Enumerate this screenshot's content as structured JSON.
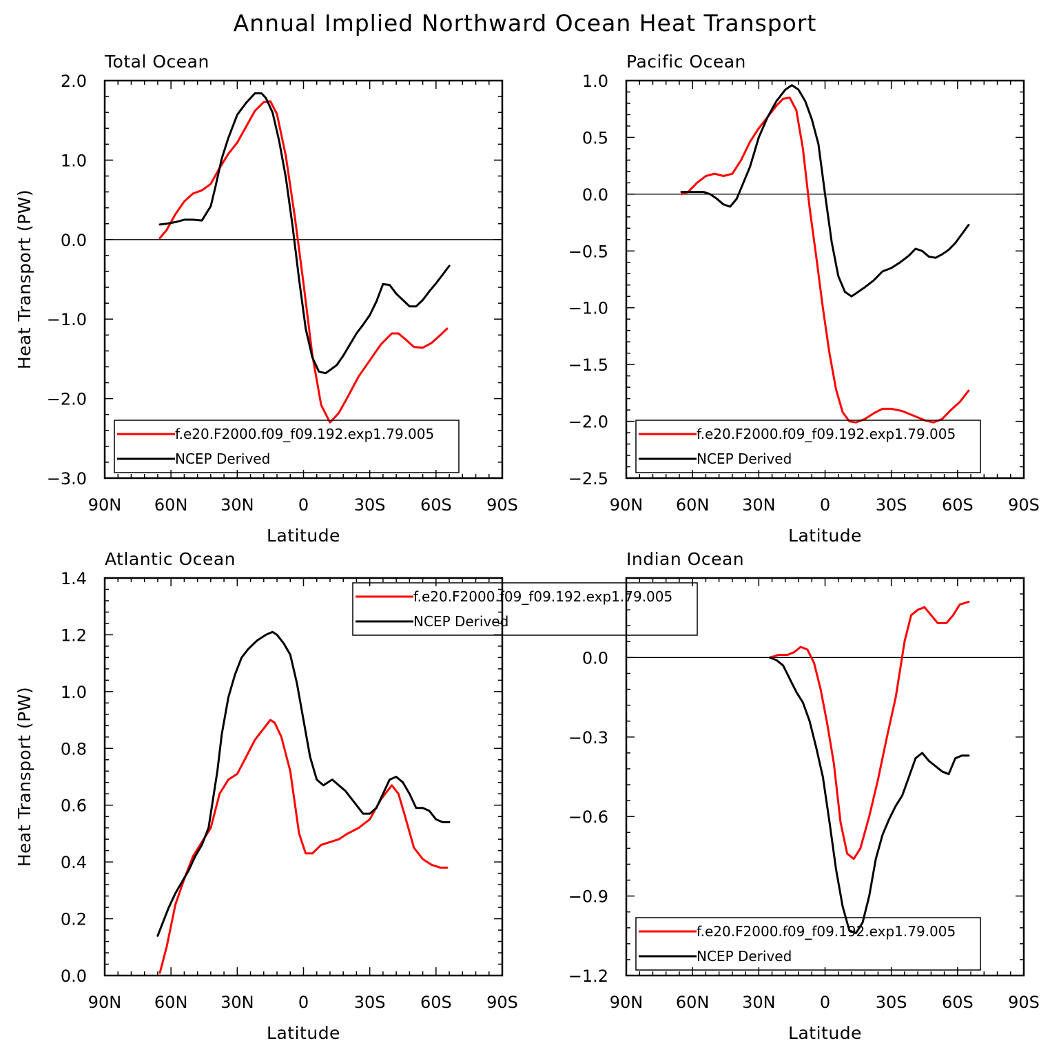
{
  "title": "Annual Implied Northward Ocean Heat Transport",
  "colors": {
    "model": "#ff0000",
    "obs": "#000000"
  },
  "legend": {
    "model": "f.e20.F2000.f09_f09.192.exp1.79.005",
    "obs": "NCEP Derived"
  },
  "chart_data": [
    {
      "type": "line",
      "title": "Total Ocean",
      "xlabel": "Latitude",
      "ylabel": "Heat Transport (PW)",
      "xlim": [
        90,
        -90
      ],
      "xticks": [
        90,
        60,
        30,
        0,
        -30,
        -60,
        -90
      ],
      "xtick_labels": [
        "90N",
        "60N",
        "30N",
        "0",
        "30S",
        "60S",
        "90S"
      ],
      "ylim": [
        -3.0,
        2.0
      ],
      "yticks": [
        2.0,
        1.0,
        0.0,
        -1.0,
        -2.0,
        -3.0
      ],
      "ytick_labels": [
        "2.0",
        "1.0",
        "0.0",
        "−1.0",
        "−2.0",
        "−3.0"
      ],
      "ytick_side": "left",
      "legend_position": "bottom-left",
      "series": [
        {
          "name": "f.e20.F2000.f09_f09.192.exp1.79.005",
          "color": "#ff0000",
          "x": [
            65,
            62,
            58,
            54,
            50,
            46,
            42,
            38,
            34,
            30,
            26,
            22,
            18,
            15,
            12,
            8,
            4,
            0,
            -4,
            -8,
            -12,
            -16,
            -20,
            -25,
            -30,
            -35,
            -40,
            -43,
            -46,
            -50,
            -54,
            -58,
            -62,
            -65
          ],
          "y": [
            0.02,
            0.12,
            0.32,
            0.48,
            0.58,
            0.62,
            0.7,
            0.9,
            1.08,
            1.22,
            1.42,
            1.62,
            1.73,
            1.74,
            1.58,
            1.05,
            0.3,
            -0.55,
            -1.45,
            -2.08,
            -2.3,
            -2.18,
            -1.98,
            -1.72,
            -1.52,
            -1.32,
            -1.18,
            -1.18,
            -1.25,
            -1.35,
            -1.36,
            -1.3,
            -1.2,
            -1.12
          ]
        },
        {
          "name": "NCEP Derived",
          "color": "#000000",
          "x": [
            65,
            62,
            58,
            54,
            50,
            46,
            42,
            40,
            37,
            34,
            30,
            26,
            22,
            19,
            17,
            14,
            11,
            8,
            5,
            2,
            -1,
            -4,
            -7,
            -10,
            -12,
            -15,
            -18,
            -21,
            -24,
            -27,
            -30,
            -33,
            -36,
            -39,
            -42,
            -45,
            -48,
            -51,
            -54,
            -57,
            -60,
            -63,
            -66
          ],
          "y": [
            0.19,
            0.2,
            0.22,
            0.25,
            0.25,
            0.24,
            0.42,
            0.65,
            1.02,
            1.28,
            1.57,
            1.72,
            1.84,
            1.84,
            1.78,
            1.6,
            1.24,
            0.78,
            0.18,
            -0.5,
            -1.12,
            -1.48,
            -1.66,
            -1.68,
            -1.64,
            -1.58,
            -1.46,
            -1.32,
            -1.18,
            -1.07,
            -0.95,
            -0.78,
            -0.56,
            -0.57,
            -0.68,
            -0.76,
            -0.84,
            -0.84,
            -0.76,
            -0.65,
            -0.55,
            -0.44,
            -0.33
          ]
        }
      ]
    },
    {
      "type": "line",
      "title": "Pacific Ocean",
      "xlabel": "Latitude",
      "ylabel": "",
      "xlim": [
        90,
        -90
      ],
      "xticks": [
        90,
        60,
        30,
        0,
        -30,
        -60,
        -90
      ],
      "xtick_labels": [
        "90N",
        "60N",
        "30N",
        "0",
        "30S",
        "60S",
        "90S"
      ],
      "ylim": [
        -2.5,
        1.0
      ],
      "yticks": [
        1.0,
        0.5,
        0.0,
        -0.5,
        -1.0,
        -1.5,
        -2.0,
        -2.5
      ],
      "ytick_labels": [
        "1.0",
        "0.5",
        "0.0",
        "−0.5",
        "−1.0",
        "−1.5",
        "−2.0",
        "−2.5"
      ],
      "ytick_side": "left",
      "legend_position": "bottom-left",
      "series": [
        {
          "name": "f.e20.F2000.f09_f09.192.exp1.79.005",
          "color": "#ff0000",
          "x": [
            65,
            62,
            58,
            54,
            50,
            46,
            42,
            38,
            34,
            30,
            26,
            22,
            19,
            16,
            13,
            10,
            7,
            4,
            1,
            -2,
            -5,
            -8,
            -11,
            -14,
            -18,
            -22,
            -26,
            -30,
            -35,
            -40,
            -45,
            -49,
            -53,
            -57,
            -61,
            -65
          ],
          "y": [
            0.0,
            0.02,
            0.1,
            0.16,
            0.18,
            0.16,
            0.18,
            0.3,
            0.46,
            0.58,
            0.68,
            0.78,
            0.84,
            0.85,
            0.74,
            0.4,
            -0.12,
            -0.55,
            -1.0,
            -1.4,
            -1.72,
            -1.92,
            -2.0,
            -2.01,
            -1.98,
            -1.93,
            -1.89,
            -1.89,
            -1.91,
            -1.95,
            -1.99,
            -2.01,
            -1.98,
            -1.9,
            -1.83,
            -1.73
          ]
        },
        {
          "name": "NCEP Derived",
          "color": "#000000",
          "x": [
            65,
            60,
            55,
            52,
            49,
            46,
            43,
            40,
            37,
            34,
            30,
            26,
            22,
            18,
            15,
            12,
            9,
            6,
            3,
            0,
            -3,
            -6,
            -9,
            -12,
            -15,
            -18,
            -22,
            -26,
            -30,
            -34,
            -38,
            -41,
            -44,
            -47,
            -50,
            -53,
            -56,
            -59,
            -62,
            -65
          ],
          "y": [
            0.02,
            0.02,
            0.02,
            0.0,
            -0.04,
            -0.09,
            -0.11,
            -0.04,
            0.1,
            0.24,
            0.5,
            0.68,
            0.82,
            0.92,
            0.96,
            0.92,
            0.82,
            0.66,
            0.44,
            0.0,
            -0.42,
            -0.72,
            -0.86,
            -0.9,
            -0.86,
            -0.82,
            -0.76,
            -0.68,
            -0.65,
            -0.6,
            -0.54,
            -0.48,
            -0.5,
            -0.55,
            -0.56,
            -0.53,
            -0.49,
            -0.43,
            -0.35,
            -0.27
          ]
        }
      ]
    },
    {
      "type": "line",
      "title": "Atlantic Ocean",
      "xlabel": "Latitude",
      "ylabel": "Heat Transport (PW)",
      "xlim": [
        90,
        -90
      ],
      "xticks": [
        90,
        60,
        30,
        0,
        -30,
        -60,
        -90
      ],
      "xtick_labels": [
        "90N",
        "60N",
        "30N",
        "0",
        "30S",
        "60S",
        "90S"
      ],
      "ylim": [
        0.0,
        1.4
      ],
      "yticks": [
        1.4,
        1.2,
        1.0,
        0.8,
        0.6,
        0.4,
        0.2,
        0.0
      ],
      "ytick_labels": [
        "1.4",
        "1.2",
        "1.0",
        "0.8",
        "0.6",
        "0.4",
        "0.2",
        "0.0"
      ],
      "ytick_side": "left",
      "legend_position": "top-center",
      "series": [
        {
          "name": "f.e20.F2000.f09_f09.192.exp1.79.005",
          "color": "#ff0000",
          "x": [
            65,
            62,
            58,
            54,
            50,
            46,
            42,
            38,
            34,
            30,
            26,
            22,
            18,
            15,
            13,
            10,
            6,
            2,
            -1,
            -4,
            -8,
            -12,
            -16,
            -20,
            -25,
            -30,
            -35,
            -40,
            -43,
            -46,
            -50,
            -54,
            -58,
            -62,
            -65
          ],
          "y": [
            0.01,
            0.1,
            0.25,
            0.34,
            0.42,
            0.47,
            0.52,
            0.64,
            0.69,
            0.71,
            0.77,
            0.83,
            0.87,
            0.9,
            0.89,
            0.84,
            0.72,
            0.5,
            0.43,
            0.43,
            0.46,
            0.47,
            0.48,
            0.5,
            0.52,
            0.55,
            0.62,
            0.67,
            0.64,
            0.56,
            0.45,
            0.41,
            0.39,
            0.38,
            0.38
          ]
        },
        {
          "name": "NCEP Derived",
          "color": "#000000",
          "x": [
            66,
            64,
            61,
            58,
            55,
            52,
            49,
            46,
            43,
            41,
            39,
            37,
            34,
            31,
            28,
            25,
            21,
            17,
            14,
            12,
            9,
            6,
            3,
            0,
            -3,
            -6,
            -9,
            -13,
            -16,
            -19,
            -22,
            -25,
            -27,
            -30,
            -33,
            -36,
            -39,
            -42,
            -45,
            -48,
            -51,
            -54,
            -57,
            -60,
            -63,
            -66
          ],
          "y": [
            0.14,
            0.18,
            0.24,
            0.29,
            0.33,
            0.37,
            0.42,
            0.46,
            0.52,
            0.62,
            0.72,
            0.85,
            0.98,
            1.06,
            1.12,
            1.15,
            1.18,
            1.2,
            1.21,
            1.2,
            1.17,
            1.13,
            1.03,
            0.9,
            0.77,
            0.69,
            0.67,
            0.69,
            0.67,
            0.65,
            0.62,
            0.59,
            0.57,
            0.57,
            0.59,
            0.64,
            0.69,
            0.7,
            0.68,
            0.64,
            0.59,
            0.59,
            0.58,
            0.55,
            0.54,
            0.54
          ]
        }
      ]
    },
    {
      "type": "line",
      "title": "Indian Ocean",
      "xlabel": "Latitude",
      "ylabel": "",
      "xlim": [
        90,
        -90
      ],
      "xticks": [
        90,
        60,
        30,
        0,
        -30,
        -60,
        -90
      ],
      "xtick_labels": [
        "90N",
        "60N",
        "30N",
        "0",
        "30S",
        "60S",
        "90S"
      ],
      "ylim": [
        -1.2,
        0.3
      ],
      "yticks": [
        0.0,
        -0.3,
        -0.6,
        -0.9,
        -1.2
      ],
      "ytick_labels": [
        "0.0",
        "−0.3",
        "−0.6",
        "−0.9",
        "−1.2"
      ],
      "ytick_side": "left",
      "legend_position": "bottom-left",
      "series": [
        {
          "name": "f.e20.F2000.f09_f09.192.exp1.79.005",
          "color": "#ff0000",
          "x": [
            25,
            21,
            17,
            14,
            11,
            8,
            5,
            2,
            -1,
            -4,
            -7,
            -10,
            -13,
            -16,
            -20,
            -24,
            -28,
            -32,
            -36,
            -39,
            -42,
            -45,
            -48,
            -51,
            -55,
            -58,
            -61,
            -65
          ],
          "y": [
            0.0,
            0.01,
            0.01,
            0.02,
            0.04,
            0.03,
            -0.02,
            -0.12,
            -0.25,
            -0.4,
            -0.62,
            -0.74,
            -0.76,
            -0.72,
            -0.6,
            -0.46,
            -0.3,
            -0.15,
            0.06,
            0.16,
            0.18,
            0.19,
            0.16,
            0.13,
            0.13,
            0.16,
            0.2,
            0.21
          ]
        },
        {
          "name": "NCEP Derived",
          "color": "#000000",
          "x": [
            25,
            22,
            19,
            16,
            13,
            10,
            7,
            4,
            1,
            -2,
            -5,
            -8,
            -11,
            -14,
            -17,
            -20,
            -23,
            -26,
            -29,
            -32,
            -35,
            -38,
            -41,
            -44,
            -47,
            -50,
            -53,
            -56,
            -59,
            -62,
            -65
          ],
          "y": [
            0.0,
            -0.01,
            -0.03,
            -0.08,
            -0.13,
            -0.17,
            -0.24,
            -0.34,
            -0.45,
            -0.62,
            -0.8,
            -0.94,
            -1.03,
            -1.04,
            -1.0,
            -0.9,
            -0.76,
            -0.67,
            -0.61,
            -0.56,
            -0.52,
            -0.45,
            -0.38,
            -0.36,
            -0.39,
            -0.41,
            -0.43,
            -0.44,
            -0.38,
            -0.37,
            -0.37
          ]
        }
      ]
    }
  ]
}
